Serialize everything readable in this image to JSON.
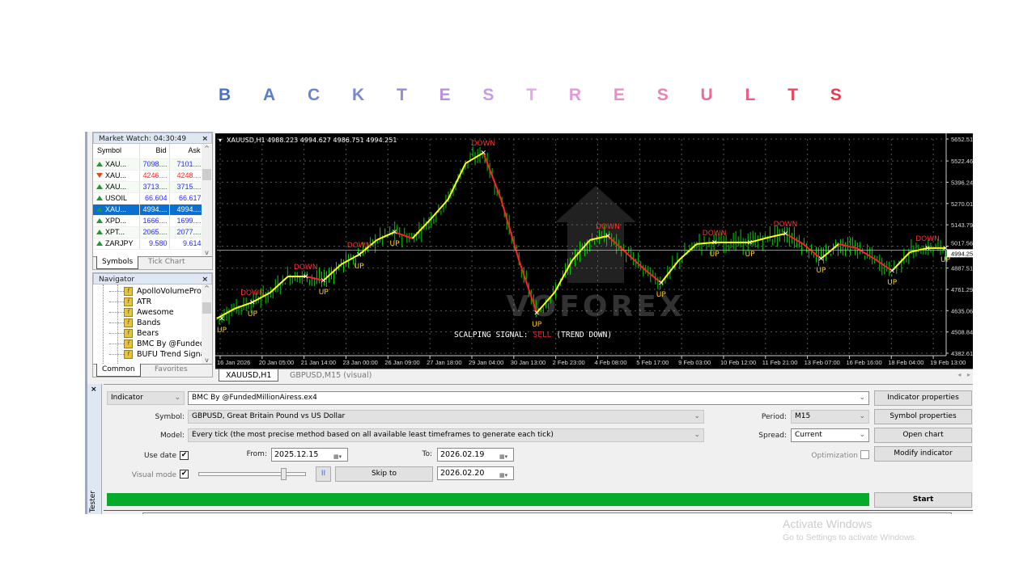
{
  "page_title": [
    "B",
    "A",
    "C",
    "K",
    "T",
    "E",
    "S",
    "T",
    "R",
    "E",
    "S",
    "U",
    "L",
    "T",
    "S"
  ],
  "title_colors": [
    "#4a72c4",
    "#5a7ccc",
    "#6b85cf",
    "#7a87d3",
    "#9a8ad8",
    "#b98fdd",
    "#c99ae2",
    "#e3a8e8",
    "#e597d6",
    "#ea8ecb",
    "#ef7fb3",
    "#f06b97",
    "#f2577e",
    "#f1465f",
    "#f0354c"
  ],
  "market_watch": {
    "title": "Market Watch: 04:30:49",
    "columns": [
      "Symbol",
      "Bid",
      "Ask"
    ],
    "rows": [
      {
        "symbol": "XAU...",
        "bid": "7098....",
        "ask": "7101....",
        "dir": "up",
        "color": "#2a2aff"
      },
      {
        "symbol": "XAU...",
        "bid": "4246....",
        "ask": "4248....",
        "dir": "down",
        "color": "#ff2a2a"
      },
      {
        "symbol": "XAU...",
        "bid": "3713....",
        "ask": "3715....",
        "dir": "up",
        "color": "#2a2aff"
      },
      {
        "symbol": "USOIL",
        "bid": "66.604",
        "ask": "66.617",
        "dir": "up",
        "color": "#2a2aff"
      },
      {
        "symbol": "XAU...",
        "bid": "4994....",
        "ask": "4994....",
        "dir": "up",
        "color": "#ffffff",
        "selected": true
      },
      {
        "symbol": "XPD...",
        "bid": "1666....",
        "ask": "1699....",
        "dir": "up",
        "color": "#2a2aff"
      },
      {
        "symbol": "XPT...",
        "bid": "2065....",
        "ask": "2077....",
        "dir": "up",
        "color": "#2a2aff"
      },
      {
        "symbol": "ZARJPY",
        "bid": "9.580",
        "ask": "9.614",
        "dir": "up",
        "color": "#2a2aff"
      }
    ],
    "tabs": [
      "Symbols",
      "Tick Chart"
    ]
  },
  "navigator": {
    "title": "Navigator",
    "items": [
      "ApolloVolumePro",
      "ATR",
      "Awesome",
      "Bands",
      "Bears",
      "BMC By @FundedMillionAiress",
      "BUFU Trend Signal"
    ],
    "tabs": [
      "Common",
      "Favorites"
    ]
  },
  "chart": {
    "header": "XAUUSD,H1  4988.223 4994.627 4986.751 4994.251",
    "current_price": "4994.251",
    "price_ticks": [
      "5652.515",
      "5522.465",
      "5396.240",
      "5270.015",
      "5143.790",
      "5017.565",
      "4887.515",
      "4761.290",
      "4635.065",
      "4508.840",
      "4382.615"
    ],
    "time_ticks": [
      "16 Jan 2026",
      "20 Jan 05:00",
      "21 Jan 14:00",
      "23 Jan 00:00",
      "26 Jan 09:00",
      "27 Jan 18:00",
      "29 Jan 04:00",
      "30 Jan 13:00",
      "2 Feb 23:00",
      "4 Feb 08:00",
      "5 Feb 17:00",
      "9 Feb 03:00",
      "10 Feb 12:00",
      "11 Feb 21:00",
      "13 Feb 07:00",
      "16 Feb 16:00",
      "18 Feb 04:00",
      "19 Feb 13:00"
    ],
    "ylim": [
      4382.615,
      5652.515
    ],
    "indicator_line": [
      4589,
      4647,
      4685,
      4742,
      4838,
      4838,
      4814,
      4910,
      4967,
      5054,
      5101,
      5063,
      5174,
      5293,
      5509,
      5571,
      5293,
      4934,
      4623,
      4742,
      4934,
      5054,
      5078,
      4982,
      4886,
      4800,
      4934,
      5030,
      5040,
      5040,
      5040,
      5068,
      5092,
      5030,
      4943,
      5030,
      5006,
      4943,
      4871,
      4982,
      5006,
      5006
    ],
    "indicator_up_color": "#ffff00",
    "indicator_down_color": "#ff2020",
    "candle_color": "#00d000",
    "signals": [
      {
        "label": "UP",
        "at": 0
      },
      {
        "label": "DOWN",
        "at": 2
      },
      {
        "label": "UP",
        "at": 2
      },
      {
        "label": "DOWN",
        "at": 5
      },
      {
        "label": "UP",
        "at": 6
      },
      {
        "label": "DOWN",
        "at": 8
      },
      {
        "label": "UP",
        "at": 8
      },
      {
        "label": "UP",
        "at": 10
      },
      {
        "label": "DOWN",
        "at": 15
      },
      {
        "label": "UP",
        "at": 18
      },
      {
        "label": "DOWN",
        "at": 22
      },
      {
        "label": "UP",
        "at": 25
      },
      {
        "label": "DOWN",
        "at": 28
      },
      {
        "label": "UP",
        "at": 28
      },
      {
        "label": "UP",
        "at": 30
      },
      {
        "label": "DOWN",
        "at": 32
      },
      {
        "label": "UP",
        "at": 34
      },
      {
        "label": "UP",
        "at": 38
      },
      {
        "label": "DOWN",
        "at": 40
      },
      {
        "label": "UP",
        "at": 41
      }
    ],
    "signal_prefix": "SCALPING SIGNAL:",
    "signal_value": "SELL",
    "signal_suffix": "(TREND DOWN)",
    "watermark": "VOFOREX",
    "tabs": [
      "XAUUSD,H1",
      "GBPUSD,M15 (visual)"
    ]
  },
  "tester": {
    "type": "Indicator",
    "expert": "BMC By @FundedMillionAiress.ex4",
    "symbol_label": "Symbol:",
    "symbol": "GBPUSD, Great Britain Pound vs US Dollar",
    "model_label": "Model:",
    "model": "Every tick (the most precise method based on all available least timeframes to generate each tick)",
    "use_date_label": "Use date",
    "use_date": true,
    "from_label": "From:",
    "from": "2025.12.15",
    "to_label": "To:",
    "to": "2026.02.19",
    "visual_mode_label": "Visual mode",
    "visual_mode": true,
    "speed": 0.8,
    "pause_label": "II",
    "skip_to_label": "Skip to",
    "skip_to": "2026.02.20",
    "period_label": "Period:",
    "period": "M15",
    "spread_label": "Spread:",
    "spread": "Current",
    "optimization_label": "Optimization",
    "optimization": false,
    "buttons": {
      "indicator_properties": "Indicator properties",
      "symbol_properties": "Symbol properties",
      "open_chart": "Open chart",
      "modify_indicator": "Modify indicator",
      "start": "Start"
    },
    "progress": 1.0,
    "progress_color": "#06ab2a",
    "side_label": "Tester"
  },
  "os_watermark": {
    "line1": "Activate Windows",
    "line2": "Go to Settings to activate Windows."
  }
}
